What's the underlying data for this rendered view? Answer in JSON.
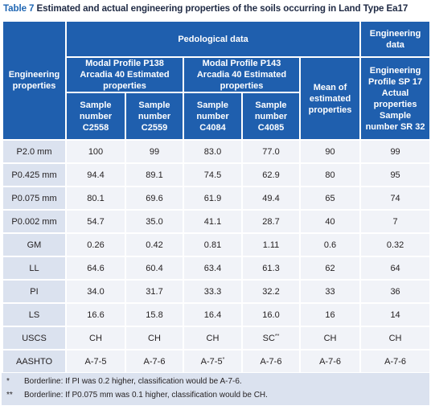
{
  "caption": {
    "number": "Table 7",
    "title": "Estimated and actual engineering properties of the soils occurring in Land Type Ea17"
  },
  "header": {
    "engineering_properties": "Engineering properties",
    "pedological_data": "Pedological data",
    "engineering_data": "Engineering data",
    "profile_p138": "Modal Profile P138 Arcadia 40 Estimated properties",
    "profile_p143": "Modal Profile P143 Arcadia 40 Estimated properties",
    "mean_estimated": "Mean of estimated properties",
    "profile_sp17": "Engineering Profile SP 17 Actual properties Sample number SR 32",
    "samples": [
      "Sample number C2558",
      "Sample number C2559",
      "Sample number C4084",
      "Sample number C4085"
    ]
  },
  "rows": [
    {
      "label": "P2.0 mm",
      "v": [
        "100",
        "99",
        "83.0",
        "77.0",
        "90",
        "99"
      ]
    },
    {
      "label": "P0.425 mm",
      "v": [
        "94.4",
        "89.1",
        "74.5",
        "62.9",
        "80",
        "95"
      ]
    },
    {
      "label": "P0.075 mm",
      "v": [
        "80.1",
        "69.6",
        "61.9",
        "49.4",
        "65",
        "74"
      ]
    },
    {
      "label": "P0.002 mm",
      "v": [
        "54.7",
        "35.0",
        "41.1",
        "28.7",
        "40",
        "7"
      ]
    },
    {
      "label": "GM",
      "v": [
        "0.26",
        "0.42",
        "0.81",
        "1.11",
        "0.6",
        "0.32"
      ]
    },
    {
      "label": "LL",
      "v": [
        "64.6",
        "60.4",
        "63.4",
        "61.3",
        "62",
        "64"
      ]
    },
    {
      "label": "PI",
      "v": [
        "34.0",
        "31.7",
        "33.3",
        "32.2",
        "33",
        "36"
      ]
    },
    {
      "label": "LS",
      "v": [
        "16.6",
        "15.8",
        "16.4",
        "16.0",
        "16",
        "14"
      ]
    },
    {
      "label": "USCS",
      "v": [
        "CH",
        "CH",
        "CH",
        "SC",
        "CH",
        "CH"
      ]
    },
    {
      "label": "AASHTO",
      "v": [
        "A-7-5",
        "A-7-6",
        "A-7-5",
        "A-7-6",
        "A-7-6",
        "A-7-6"
      ]
    }
  ],
  "marks": {
    "single": "*",
    "double": "**"
  },
  "notes": [
    {
      "mark": "*",
      "text": "Borderline: If PI was 0.2 higher, classification would be A-7-6."
    },
    {
      "mark": "**",
      "text": "Borderline: If P0.075 mm was 0.1 higher, classification would be CH."
    }
  ],
  "colors": {
    "header_blue": "#1f5fae",
    "label_cell": "#dbe2ef",
    "value_cell": "#f1f3f8",
    "caption_number": "#1f66b3"
  }
}
